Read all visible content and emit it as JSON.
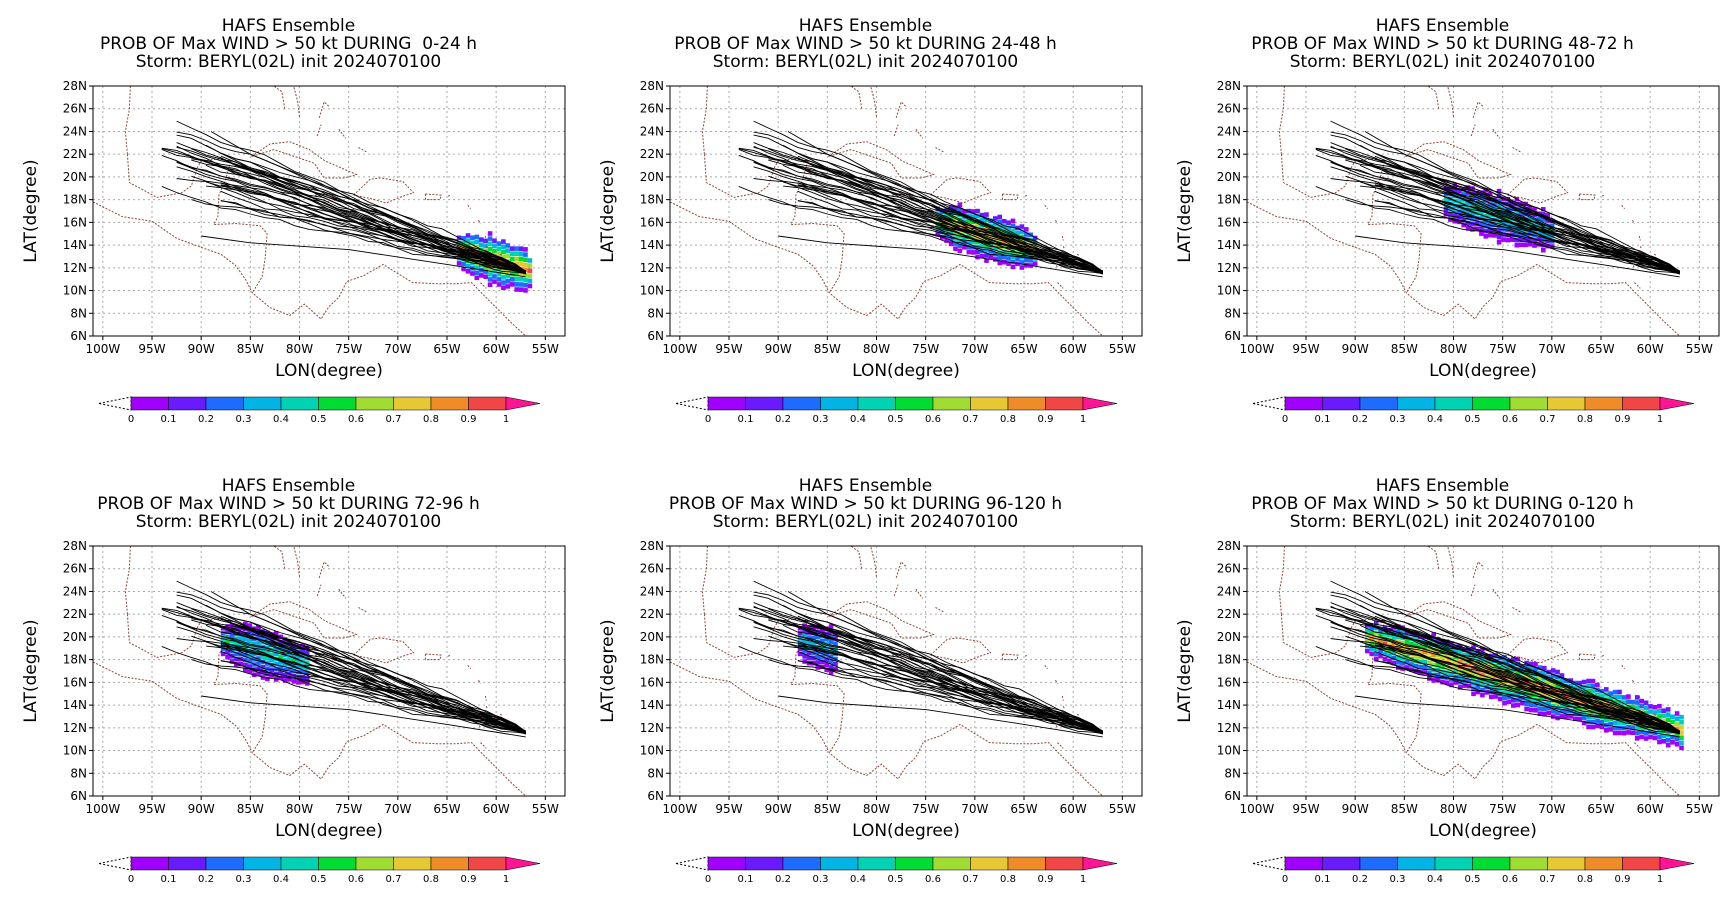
{
  "map": {
    "x_axis_label": "LON(degree)",
    "y_axis_label": "LAT(degree)",
    "lon_ticks": [
      "100W",
      "95W",
      "90W",
      "85W",
      "80W",
      "75W",
      "70W",
      "65W",
      "60W",
      "55W"
    ],
    "lat_ticks": [
      "28N",
      "26N",
      "24N",
      "22N",
      "20N",
      "18N",
      "16N",
      "14N",
      "12N",
      "10N",
      "8N",
      "6N"
    ],
    "lon_range": [
      -101,
      -53
    ],
    "lat_range": [
      6,
      28
    ],
    "coast_color": "#8b4a3c",
    "track_color": "#000000",
    "grid_color": "#aaaaaa"
  },
  "colorbar": {
    "labels": [
      "0",
      "0.1",
      "0.2",
      "0.3",
      "0.4",
      "0.5",
      "0.6",
      "0.7",
      "0.8",
      "0.9",
      "1"
    ],
    "colors": [
      "#9f00ff",
      "#6a1aff",
      "#1e6cff",
      "#00b4e6",
      "#00d2b4",
      "#00dc32",
      "#a0dc32",
      "#e6c832",
      "#f08c28",
      "#f04646"
    ],
    "over_color": "#ff1493"
  },
  "panels": [
    {
      "title1": "HAFS Ensemble",
      "title2": "PROB OF Max WIND > 50 kt DURING  0-24 h",
      "title3": "Storm: BERYL(02L) init 2024070100"
    },
    {
      "title1": "HAFS Ensemble",
      "title2": "PROB OF Max WIND > 50 kt DURING 24-48 h",
      "title3": "Storm: BERYL(02L) init 2024070100"
    },
    {
      "title1": "HAFS Ensemble",
      "title2": "PROB OF Max WIND > 50 kt DURING 48-72 h",
      "title3": "Storm: BERYL(02L) init 2024070100"
    },
    {
      "title1": "HAFS Ensemble",
      "title2": "PROB OF Max WIND > 50 kt DURING 72-96 h",
      "title3": "Storm: BERYL(02L) init 2024070100"
    },
    {
      "title1": "HAFS Ensemble",
      "title2": "PROB OF Max WIND > 50 kt DURING 96-120 h",
      "title3": "Storm: BERYL(02L) init 2024070100"
    },
    {
      "title1": "HAFS Ensemble",
      "title2": "PROB OF Max WIND > 50 kt DURING 0-120 h",
      "title3": "Storm: BERYL(02L) init 2024070100"
    }
  ],
  "swaths": [
    {
      "lon": [
        -64,
        -56.5
      ],
      "peak": 0.95
    },
    {
      "lon": [
        -74,
        -64
      ],
      "peak": 0.85
    },
    {
      "lon": [
        -81,
        -70
      ],
      "peak": 0.5
    },
    {
      "lon": [
        -88,
        -79
      ],
      "peak": 0.5
    },
    {
      "lon": [
        -88,
        -84
      ],
      "peak": 0.4
    },
    {
      "lon": [
        -89,
        -57
      ],
      "peak": 0.9
    }
  ]
}
